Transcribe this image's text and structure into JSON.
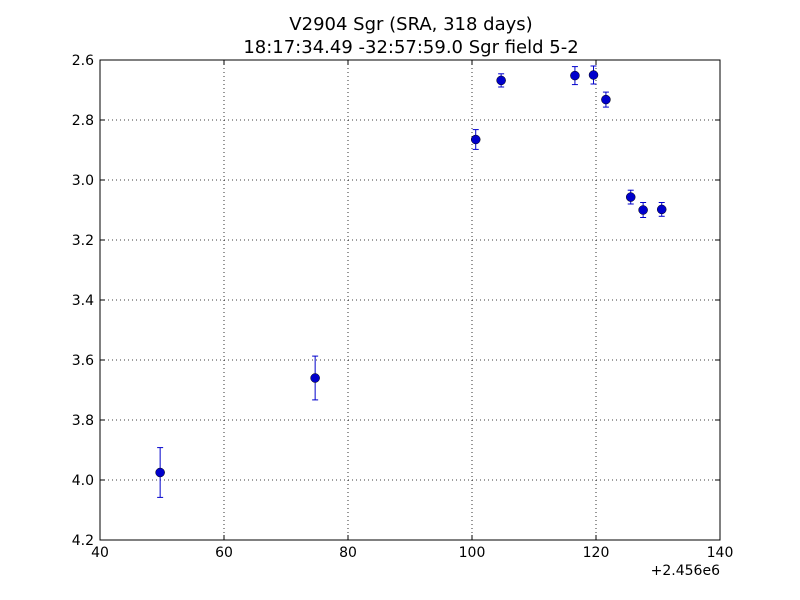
{
  "chart_data": {
    "type": "scatter",
    "title": "V2904 Sgr  (SRA, 318 days)",
    "subtitle": "18:17:34.49 -32:57:59.0 Sgr field 5-2",
    "xlabel": "",
    "ylabel": "",
    "x_offset_label": "+2.456e6",
    "xlim": [
      40,
      140
    ],
    "ylim": [
      4.2,
      2.6
    ],
    "y_inverted": true,
    "grid": true,
    "x_ticks": [
      40,
      60,
      80,
      100,
      120,
      140
    ],
    "x_tick_labels": [
      "40",
      "60",
      "80",
      "100",
      "120",
      "140"
    ],
    "y_ticks": [
      2.6,
      2.8,
      3.0,
      3.2,
      3.4,
      3.6,
      3.8,
      4.0,
      4.2
    ],
    "y_tick_labels": [
      "2.6",
      "2.8",
      "3.0",
      "3.2",
      "3.4",
      "3.6",
      "3.8",
      "4.0",
      "4.2"
    ],
    "marker_color": "#0000cc",
    "series": [
      {
        "points": [
          {
            "x": 49.7,
            "y": 3.975,
            "err": 0.083
          },
          {
            "x": 74.7,
            "y": 3.66,
            "err": 0.073
          },
          {
            "x": 100.6,
            "y": 2.865,
            "err": 0.033
          },
          {
            "x": 104.7,
            "y": 2.668,
            "err": 0.022
          },
          {
            "x": 116.6,
            "y": 2.652,
            "err": 0.03
          },
          {
            "x": 119.6,
            "y": 2.65,
            "err": 0.03
          },
          {
            "x": 121.6,
            "y": 2.732,
            "err": 0.025
          },
          {
            "x": 125.6,
            "y": 3.057,
            "err": 0.023
          },
          {
            "x": 127.6,
            "y": 3.1,
            "err": 0.025
          },
          {
            "x": 130.6,
            "y": 3.098,
            "err": 0.023
          }
        ]
      }
    ]
  }
}
